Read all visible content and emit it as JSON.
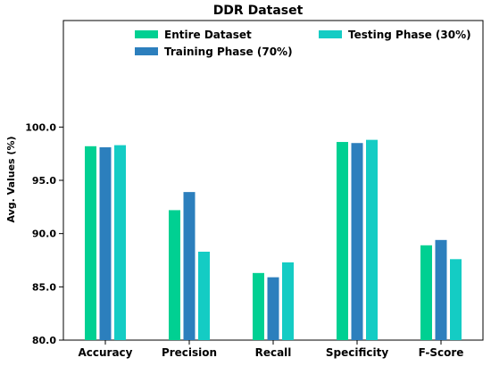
{
  "chart_data": {
    "type": "bar",
    "title": "DDR Dataset",
    "xlabel": "",
    "ylabel": "Avg. Values (%)",
    "ylim": [
      80,
      110
    ],
    "yticks": [
      "80.0",
      "85.0",
      "90.0",
      "95.0",
      "100.0"
    ],
    "grid": false,
    "legend_position": "top",
    "categories": [
      "Accuracy",
      "Precision",
      "Recall",
      "Specificity",
      "F-Score"
    ],
    "series": [
      {
        "name": "Entire Dataset",
        "color": "#00d092",
        "values": [
          98.2,
          92.2,
          86.3,
          98.6,
          88.9
        ]
      },
      {
        "name": "Training Phase (70%)",
        "color": "#2c7fbd",
        "values": [
          98.1,
          93.9,
          85.9,
          98.5,
          89.4
        ]
      },
      {
        "name": "Testing Phase (30%)",
        "color": "#14ccc4",
        "values": [
          98.3,
          88.3,
          87.3,
          98.8,
          87.6
        ]
      }
    ]
  }
}
